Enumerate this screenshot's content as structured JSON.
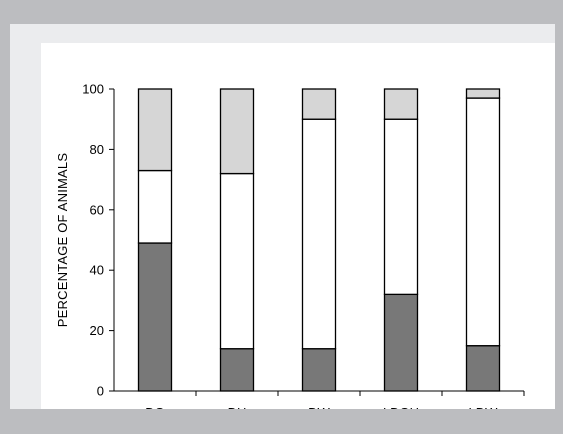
{
  "chart_data": {
    "type": "bar",
    "stacked": true,
    "categories": [
      "DG",
      "DH",
      "DW",
      "LDGH",
      "LDW"
    ],
    "series": [
      {
        "values": [
          49,
          14,
          14,
          32,
          15
        ],
        "color": "#787878"
      },
      {
        "values": [
          24,
          58,
          76,
          58,
          82
        ],
        "color": "#ffffff"
      },
      {
        "values": [
          27,
          28,
          10,
          10,
          3
        ],
        "color": "#d6d6d6"
      }
    ],
    "yticks": [
      0,
      20,
      40,
      60,
      80,
      100
    ],
    "ylabel": "PERCENTAGE OF ANIMALS",
    "xlabel": "",
    "ylim": [
      0,
      100
    ],
    "grid": false
  }
}
